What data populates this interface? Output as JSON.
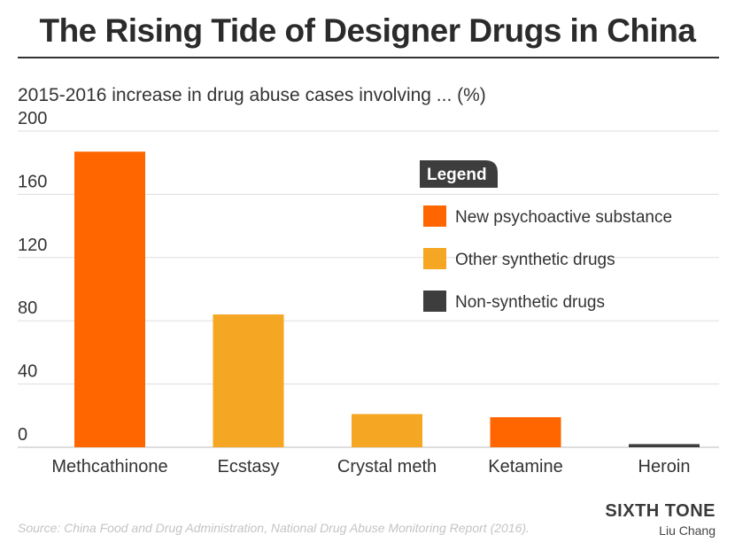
{
  "title": "The Rising Tide of Designer Drugs in China",
  "subtitle": "2015-2016 increase in drug abuse cases involving ... (%)",
  "source": "Source: China Food and Drug Administration, National Drug Abuse Monitoring Report (2016).",
  "brand": "SIXTH TONE",
  "author": "Liu Chang",
  "colors": {
    "new_psychoactive": "#ff6600",
    "other_synthetic": "#f5a623",
    "non_synthetic": "#3d3d3d",
    "grid": "#dddddd",
    "legend_header": "#3d3d3d"
  },
  "chart_data": {
    "type": "bar",
    "categories": [
      "Methcathinone",
      "Ecstasy",
      "Crystal meth",
      "Ketamine",
      "Heroin"
    ],
    "values": [
      187,
      84,
      21,
      19,
      2
    ],
    "groups": [
      "New psychoactive substance",
      "Other synthetic drugs",
      "Other synthetic drugs",
      "New psychoactive substance",
      "Non-synthetic drugs"
    ],
    "ylim": [
      0,
      200
    ],
    "yticks": [
      0,
      40,
      80,
      120,
      160,
      200
    ],
    "grid": true,
    "legend": {
      "title": "Legend",
      "position": "top-right",
      "entries": [
        {
          "label": "New psychoactive substance",
          "color": "#ff6600"
        },
        {
          "label": "Other synthetic drugs",
          "color": "#f5a623"
        },
        {
          "label": "Non-synthetic drugs",
          "color": "#3d3d3d"
        }
      ]
    }
  }
}
